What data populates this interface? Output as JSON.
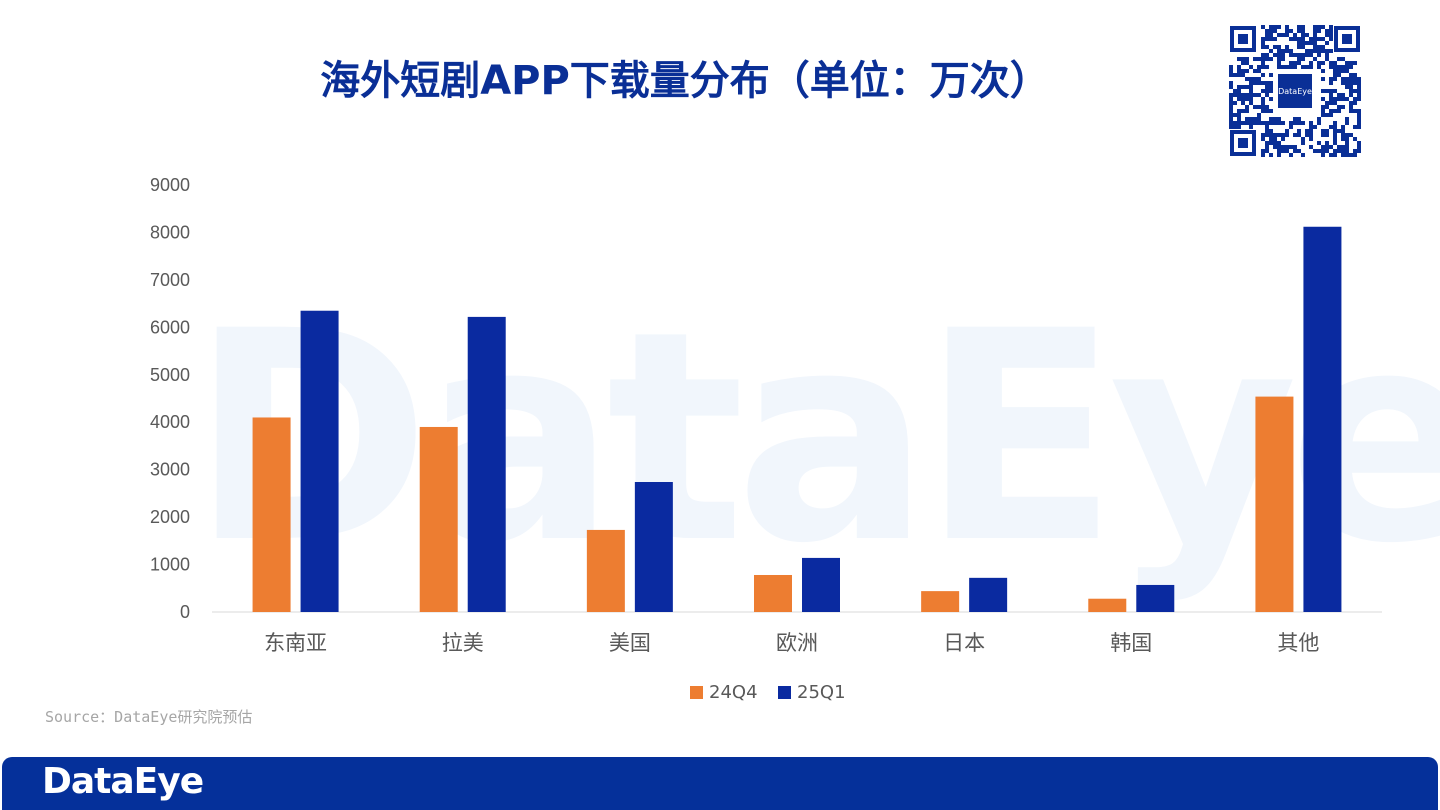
{
  "title": "海外短剧APP下载量分布（单位：万次）",
  "source": "Source：DataEye研究院预估",
  "footer_logo": "DataEye",
  "watermark": "DataEye",
  "qr_logo": "DataEye",
  "chart_data": {
    "type": "bar",
    "title": "海外短剧APP下载量分布（单位：万次）",
    "categories": [
      "东南亚",
      "拉美",
      "美国",
      "欧洲",
      "日本",
      "韩国",
      "其他"
    ],
    "series": [
      {
        "name": "24Q4",
        "color": "#ed7d31",
        "values": [
          4100,
          3900,
          1730,
          780,
          440,
          280,
          4540
        ]
      },
      {
        "name": "25Q1",
        "color": "#0a2aa0",
        "values": [
          6350,
          6220,
          2740,
          1140,
          720,
          570,
          8120
        ]
      }
    ],
    "yticks": [
      0,
      1000,
      2000,
      3000,
      4000,
      5000,
      6000,
      7000,
      8000,
      9000
    ],
    "ylim": [
      0,
      9000
    ],
    "legend_position": "bottom",
    "grid": false
  }
}
